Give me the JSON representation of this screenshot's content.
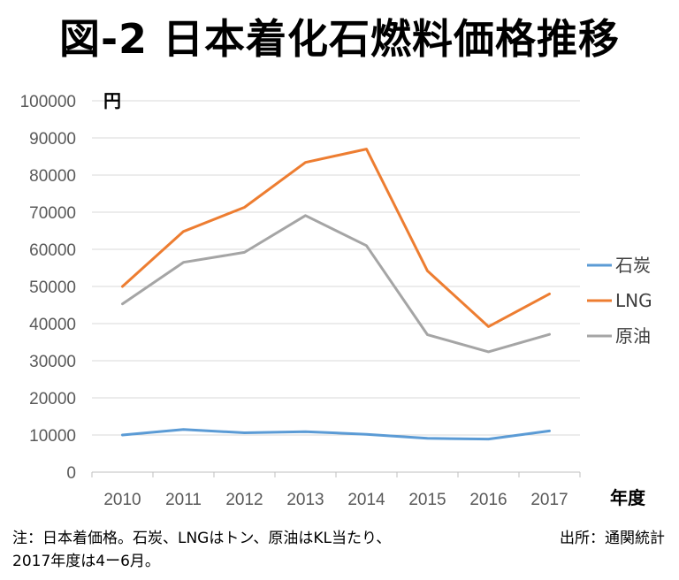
{
  "title": "図-2 日本着化石燃料価格推移",
  "chart_data": {
    "type": "line",
    "title": "図-2 日本着化石燃料価格推移",
    "xlabel": "年度",
    "ylabel": "円",
    "ylim": [
      0,
      100000
    ],
    "yticks": [
      "0",
      "10000",
      "20000",
      "30000",
      "40000",
      "50000",
      "60000",
      "70000",
      "80000",
      "90000",
      "100000"
    ],
    "categories": [
      "2010",
      "2011",
      "2012",
      "2013",
      "2014",
      "2015",
      "2016",
      "2017"
    ],
    "legend_position": "right",
    "grid": true,
    "series": [
      {
        "name": "石炭",
        "color": "#5b9bd5",
        "values": [
          10000,
          11500,
          10600,
          10900,
          10200,
          9100,
          8900,
          11100
        ]
      },
      {
        "name": "LNG",
        "color": "#ed7d31",
        "values": [
          50000,
          64800,
          71300,
          83400,
          87000,
          54200,
          39200,
          48000
        ]
      },
      {
        "name": "原油",
        "color": "#a5a5a5",
        "values": [
          45300,
          56500,
          59200,
          69100,
          61000,
          37000,
          32400,
          37100
        ]
      }
    ]
  },
  "note_lines": [
    "注：日本着価格。石炭、LNGはトン、原油はKL当たり、",
    "2017年度は4ー6月。"
  ],
  "source": "出所：通関統計"
}
